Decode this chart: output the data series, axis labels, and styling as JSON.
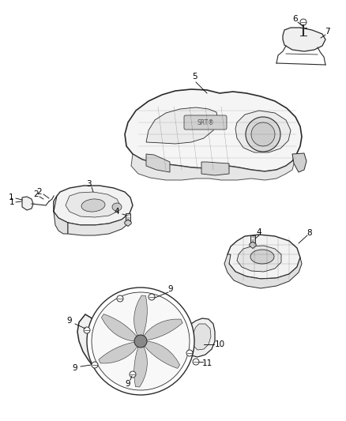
{
  "bg": "#ffffff",
  "lc": "#2a2a2a",
  "tc": "#000000",
  "fig_w": 4.38,
  "fig_h": 5.33,
  "dpi": 100,
  "fs": 7.5
}
